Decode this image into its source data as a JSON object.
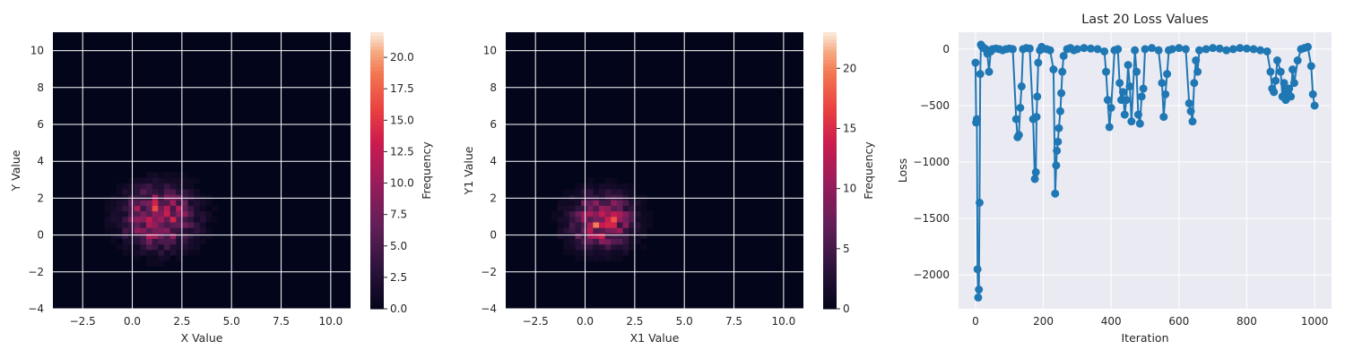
{
  "chart_data": [
    {
      "type": "heatmap",
      "xlabel": "X Value",
      "ylabel": "Y Value",
      "xlim": [
        -4,
        11
      ],
      "ylim": [
        -4,
        11
      ],
      "xticks": [
        -2.5,
        0.0,
        2.5,
        5.0,
        7.5,
        10.0
      ],
      "xtick_labels": [
        "−2.5",
        "0.0",
        "2.5",
        "5.0",
        "7.5",
        "10.0"
      ],
      "yticks": [
        -4,
        -2,
        0,
        2,
        4,
        6,
        8,
        10
      ],
      "ytick_labels": [
        "−4",
        "−2",
        "0",
        "2",
        "4",
        "6",
        "8",
        "10"
      ],
      "grid": true,
      "colorbar": {
        "label": "Frequency",
        "range": [
          0,
          22
        ],
        "ticks": [
          0,
          2.5,
          5,
          7.5,
          10,
          12.5,
          15,
          17.5,
          20
        ],
        "tick_labels": [
          "0.0",
          "2.5",
          "5.0",
          "7.5",
          "10.0",
          "12.5",
          "15.0",
          "17.5",
          "20.0"
        ],
        "colormap": "rocket"
      },
      "distribution": {
        "center_x": 1.2,
        "center_y": 0.8,
        "spread_x": 1.1,
        "spread_y": 1.0,
        "peak": 22
      }
    },
    {
      "type": "heatmap",
      "xlabel": "X1 Value",
      "ylabel": "Y1 Value",
      "xlim": [
        -4,
        11
      ],
      "ylim": [
        -4,
        11
      ],
      "xticks": [
        -2.5,
        0.0,
        2.5,
        5.0,
        7.5,
        10.0
      ],
      "xtick_labels": [
        "−2.5",
        "0.0",
        "2.5",
        "5.0",
        "7.5",
        "10.0"
      ],
      "yticks": [
        -4,
        -2,
        0,
        2,
        4,
        6,
        8,
        10
      ],
      "ytick_labels": [
        "−4",
        "−2",
        "0",
        "2",
        "4",
        "6",
        "8",
        "10"
      ],
      "grid": true,
      "colorbar": {
        "label": "Frequency",
        "range": [
          0,
          23
        ],
        "ticks": [
          0,
          5,
          10,
          15,
          20
        ],
        "tick_labels": [
          "0",
          "5",
          "10",
          "15",
          "20"
        ],
        "colormap": "rocket"
      },
      "distribution": {
        "center_x": 0.7,
        "center_y": 0.6,
        "spread_x": 1.0,
        "spread_y": 0.9,
        "peak": 23
      }
    },
    {
      "type": "line",
      "title": "Last 20 Loss Values",
      "xlabel": "Iteration",
      "ylabel": "Loss",
      "xlim": [
        -50,
        1050
      ],
      "ylim": [
        -2300,
        150
      ],
      "xticks": [
        0,
        200,
        400,
        600,
        800,
        1000
      ],
      "xtick_labels": [
        "0",
        "200",
        "400",
        "600",
        "800",
        "1000"
      ],
      "yticks": [
        -2000,
        -1500,
        -1000,
        -500,
        0
      ],
      "ytick_labels": [
        "−2000",
        "−1500",
        "−1000",
        "−500",
        "0"
      ],
      "grid": true,
      "marker": "o",
      "color": "#1f77b4",
      "series": [
        {
          "x": [
            0,
            2,
            4,
            6,
            8,
            10,
            12,
            14,
            16,
            18,
            20,
            25,
            30,
            35,
            40,
            45,
            50,
            60,
            70,
            80,
            90,
            100,
            110,
            120,
            124,
            128,
            132,
            136,
            140,
            150,
            160,
            170,
            175,
            178,
            180,
            182,
            185,
            190,
            195,
            200,
            210,
            220,
            230,
            235,
            238,
            240,
            243,
            246,
            250,
            253,
            256,
            260,
            270,
            280,
            290,
            300,
            320,
            340,
            360,
            380,
            385,
            390,
            395,
            400,
            410,
            420,
            425,
            430,
            435,
            440,
            445,
            450,
            455,
            460,
            470,
            475,
            480,
            485,
            490,
            495,
            500,
            520,
            540,
            550,
            555,
            560,
            565,
            570,
            580,
            600,
            620,
            630,
            635,
            640,
            645,
            650,
            655,
            660,
            680,
            700,
            720,
            740,
            760,
            780,
            800,
            820,
            840,
            860,
            870,
            875,
            880,
            885,
            890,
            900,
            905,
            910,
            915,
            920,
            925,
            930,
            935,
            940,
            950,
            960,
            970,
            980,
            990,
            995,
            1000
          ],
          "y": [
            -120,
            -650,
            -620,
            -1950,
            -2200,
            -2130,
            -1360,
            -220,
            40,
            30,
            20,
            10,
            0,
            -40,
            -200,
            -20,
            0,
            5,
            0,
            -10,
            0,
            5,
            0,
            -620,
            -780,
            -760,
            -520,
            -330,
            0,
            10,
            5,
            -620,
            -1150,
            -1090,
            -600,
            -420,
            -120,
            -10,
            20,
            5,
            0,
            -10,
            -180,
            -1280,
            -1030,
            -900,
            -820,
            -700,
            -550,
            -390,
            -200,
            -60,
            0,
            10,
            -10,
            0,
            10,
            5,
            0,
            -20,
            -200,
            -450,
            -690,
            -520,
            -10,
            0,
            -300,
            -450,
            -380,
            -580,
            -450,
            -140,
            -330,
            -640,
            -10,
            -200,
            -580,
            -660,
            -420,
            -350,
            0,
            10,
            -10,
            -300,
            -600,
            -400,
            -220,
            -10,
            0,
            10,
            0,
            -480,
            -550,
            -640,
            -300,
            -100,
            -200,
            -10,
            0,
            10,
            5,
            -10,
            0,
            10,
            5,
            0,
            -10,
            -20,
            -200,
            -350,
            -380,
            -280,
            -100,
            -200,
            -420,
            -300,
            -450,
            -380,
            -350,
            -420,
            -180,
            -300,
            -100,
            0,
            10,
            20,
            -150,
            -400,
            -500
          ]
        }
      ]
    }
  ]
}
